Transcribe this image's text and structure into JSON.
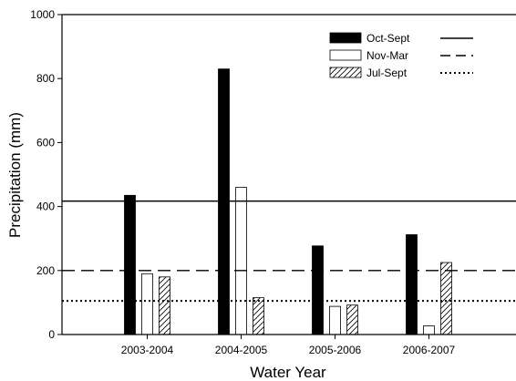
{
  "chart_data": {
    "type": "bar",
    "xlabel": "Water Year",
    "ylabel": "Precipitation (mm)",
    "ylim": [
      0,
      1000
    ],
    "yticks": [
      0,
      200,
      400,
      600,
      800,
      1000
    ],
    "categories": [
      "2003-2004",
      "2004-2005",
      "2005-2006",
      "2006-2007"
    ],
    "grid": false,
    "legend": "top-right",
    "series": [
      {
        "name": "Oct-Sept",
        "fill": "solid-black",
        "values": [
          435,
          830,
          277,
          312
        ]
      },
      {
        "name": "Nov-Mar",
        "fill": "white",
        "values": [
          190,
          460,
          88,
          27
        ]
      },
      {
        "name": "Jul-Sept",
        "fill": "diagonal-hatch",
        "values": [
          180,
          115,
          92,
          225
        ]
      }
    ],
    "reference_lines": [
      {
        "series": "Oct-Sept",
        "style": "solid",
        "value": 417
      },
      {
        "series": "Nov-Mar",
        "style": "dashed",
        "value": 200
      },
      {
        "series": "Jul-Sept",
        "style": "dotted",
        "value": 105
      }
    ]
  }
}
